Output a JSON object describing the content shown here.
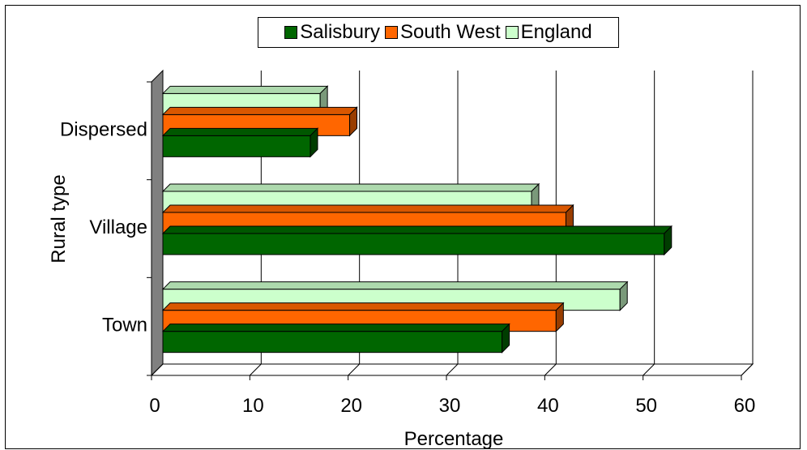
{
  "chart_data": {
    "type": "bar",
    "orientation": "horizontal",
    "three_d": true,
    "categories": [
      "Town",
      "Village",
      "Dispersed"
    ],
    "series": [
      {
        "name": "Salisbury",
        "color": "#006600",
        "values": [
          34.5,
          51,
          15
        ]
      },
      {
        "name": "South West",
        "color": "#ff6600",
        "values": [
          40,
          41,
          19
        ]
      },
      {
        "name": "England",
        "color": "#ccffcc",
        "values": [
          46.5,
          37.5,
          16
        ]
      }
    ],
    "xlabel": "Percentage",
    "ylabel": "Rural type",
    "xlim": [
      0,
      60
    ],
    "xticks": [
      "0",
      "10",
      "20",
      "30",
      "40",
      "50",
      "60"
    ],
    "grid": "vertical",
    "legend": "top"
  }
}
